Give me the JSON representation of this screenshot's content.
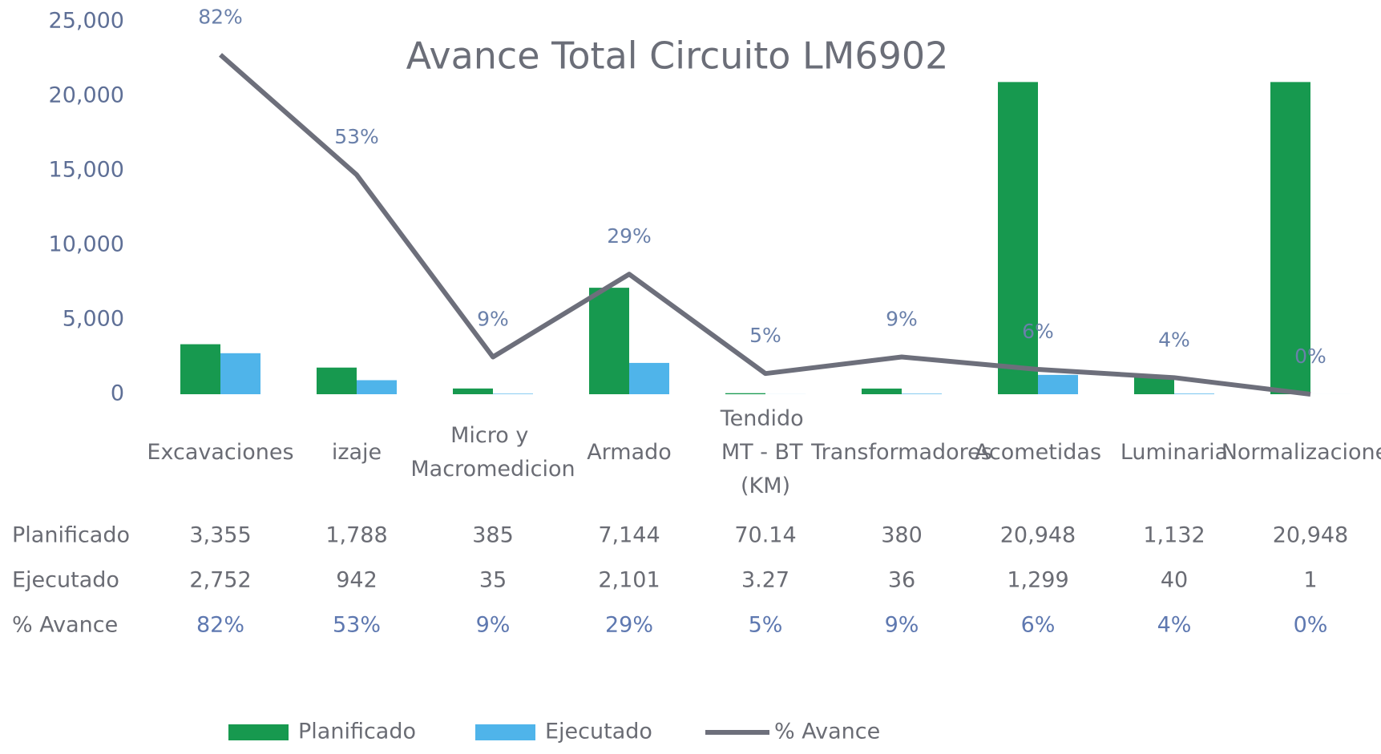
{
  "chart_data": {
    "type": "bar_line_table",
    "title": "Avance Total Circuito LM6902",
    "categories": [
      "Excavaciones",
      "izaje",
      "Micro y Macromedicion",
      "Armado",
      "Tendido MT - BT (KM)",
      "Transformadores",
      "Acometidas",
      "Luminaria",
      "Normalizaciones"
    ],
    "series": [
      {
        "name": "Planificado",
        "color": "#17994f",
        "type": "bar",
        "values": [
          3355,
          1788,
          385,
          7144,
          70.14,
          380,
          20948,
          1132,
          20948
        ],
        "value_labels": [
          "3,355",
          "1,788",
          "385",
          "7,144",
          "70.14",
          "380",
          "20,948",
          "1,132",
          "20,948"
        ]
      },
      {
        "name": "Ejecutado",
        "color": "#4fb4ea",
        "type": "bar",
        "values": [
          2752,
          942,
          35,
          2101,
          3.27,
          36,
          1299,
          40,
          1
        ],
        "value_labels": [
          "2,752",
          "942",
          "35",
          "2,101",
          "3.27",
          "36",
          "1,299",
          "40",
          "1"
        ]
      },
      {
        "name": "% Avance",
        "color": "#6d6f7b",
        "type": "line",
        "axis": "y2",
        "values": [
          82,
          53,
          9,
          29,
          5,
          9,
          6,
          4,
          0
        ],
        "value_labels": [
          "82%",
          "53%",
          "9%",
          "29%",
          "5%",
          "9%",
          "6%",
          "4%",
          "0%"
        ]
      }
    ],
    "ylim": [
      0,
      25000
    ],
    "yticks": [
      {
        "value": 0,
        "label": "0"
      },
      {
        "value": 5000,
        "label": "5,000"
      },
      {
        "value": 10000,
        "label": "10,000"
      },
      {
        "value": 15000,
        "label": "15,000"
      },
      {
        "value": 20000,
        "label": "20,000"
      },
      {
        "value": 25000,
        "label": "25,000"
      }
    ],
    "y2lim": [
      0,
      90
    ],
    "grid": false,
    "legend": "bottom"
  }
}
